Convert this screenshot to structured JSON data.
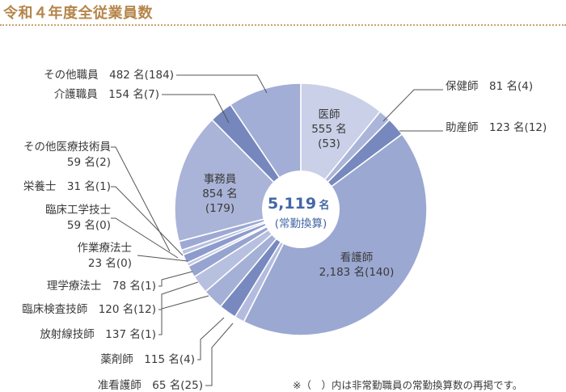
{
  "page": {
    "title": "令和４年度全従業員数",
    "note": "※（　）内は非常勤職員の常勤換算数の再掲です。"
  },
  "chart_data": {
    "type": "pie",
    "center_total": {
      "value": "5,119",
      "unit": "名",
      "sub": "(常勤換算)"
    },
    "slices": [
      {
        "name": "医師",
        "count": "555",
        "fte": "53",
        "value": 555,
        "color": "#c9d0e7",
        "label": [
          "医師",
          "555 名",
          "(53)"
        ]
      },
      {
        "name": "保健師",
        "count": "81",
        "fte": "4",
        "value": 81,
        "color": "#aab5d9",
        "label": [
          "保健師　81 名(4)"
        ]
      },
      {
        "name": "助産師",
        "count": "123",
        "fte": "12",
        "value": 123,
        "color": "#7688bd",
        "label": [
          "助産師　123 名(12)"
        ]
      },
      {
        "name": "看護師",
        "count": "2,183",
        "fte": "140",
        "value": 2183,
        "color": "#9ba8d2",
        "label": [
          "看護師",
          "2,183 名(140)"
        ]
      },
      {
        "name": "准看護師",
        "count": "65",
        "fte": "25",
        "value": 65,
        "color": "#b3bcde",
        "label": [
          "准看護師　65 名(25)"
        ]
      },
      {
        "name": "薬剤師",
        "count": "115",
        "fte": "4",
        "value": 115,
        "color": "#7889bf",
        "label": [
          "薬剤師　115 名(4)"
        ]
      },
      {
        "name": "放射線技師",
        "count": "137",
        "fte": "1",
        "value": 137,
        "color": "#a5b0d7",
        "label": [
          "放射線技師　137 名(1)"
        ]
      },
      {
        "name": "臨床検査技師",
        "count": "120",
        "fte": "12",
        "value": 120,
        "color": "#b8c0e0",
        "label": [
          "臨床検査技師　120 名(12)"
        ]
      },
      {
        "name": "理学療法士",
        "count": "78",
        "fte": "1",
        "value": 78,
        "color": "#97a4d0",
        "label": [
          "理学療法士　78 名(1)"
        ]
      },
      {
        "name": "作業療法士",
        "count": "23",
        "fte": "0",
        "value": 23,
        "color": "#c2c9e5",
        "label": [
          "作業療法士",
          "23 名(0)"
        ]
      },
      {
        "name": "臨床工学技士",
        "count": "59",
        "fte": "0",
        "value": 59,
        "color": "#8d9bcc",
        "label": [
          "臨床工学技士",
          "59 名(0)"
        ]
      },
      {
        "name": "栄養士",
        "count": "31",
        "fte": "1",
        "value": 31,
        "color": "#b9c1e0",
        "label": [
          "栄養士　31 名(1)"
        ]
      },
      {
        "name": "その他医療技術員",
        "count": "59",
        "fte": "2",
        "value": 59,
        "color": "#9da9d3",
        "label": [
          "その他医療技術員",
          "59 名(2)"
        ]
      },
      {
        "name": "事務員",
        "count": "854",
        "fte": "179",
        "value": 854,
        "color": "#aab4d8",
        "label": [
          "事務員",
          "854 名",
          "(179)"
        ]
      },
      {
        "name": "介護職員",
        "count": "154",
        "fte": "7",
        "value": 154,
        "color": "#7687bd",
        "label": [
          "介護職員　154 名(7)"
        ]
      },
      {
        "name": "その他職員",
        "count": "482",
        "fte": "184",
        "value": 482,
        "color": "#a2aed6",
        "label": [
          "その他職員　482 名(184)"
        ]
      }
    ]
  }
}
